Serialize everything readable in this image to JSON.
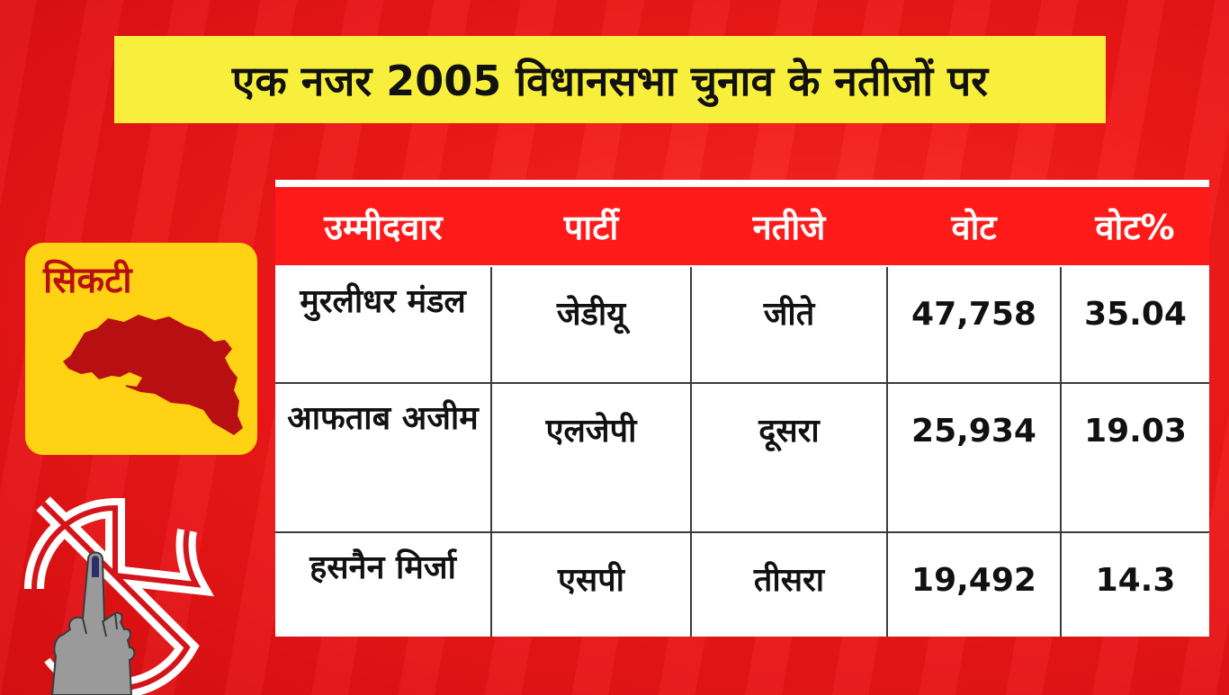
{
  "title": "एक नजर 2005 विधानसभा चुनाव के नतीजों पर",
  "constituency": "सिकटी",
  "table": {
    "headers": [
      "उम्मीदवार",
      "पार्टी",
      "नतीजे",
      "वोट",
      "वोट%"
    ],
    "rows": [
      {
        "candidate": "मुरलीधर मंडल",
        "party": "जेडीयू",
        "result": "जीते",
        "votes": "47,758",
        "vote_pct": "35.04"
      },
      {
        "candidate": "आफताब अजीम",
        "party": "एलजेपी",
        "result": "दूसरा",
        "votes": "25,934",
        "vote_pct": "19.03"
      },
      {
        "candidate": "हसनैन मिर्जा",
        "party": "एसपी",
        "result": "तीसरा",
        "votes": "19,492",
        "vote_pct": "14.3"
      }
    ]
  },
  "colors": {
    "background": "#f01818",
    "title_bar": "#f8ef3c",
    "badge": "#ffd213",
    "map": "#b70f12",
    "header": "#ff1a1a"
  },
  "icons": [
    "constituency-map-icon",
    "election-commission-symbol-icon",
    "voting-finger-icon"
  ]
}
